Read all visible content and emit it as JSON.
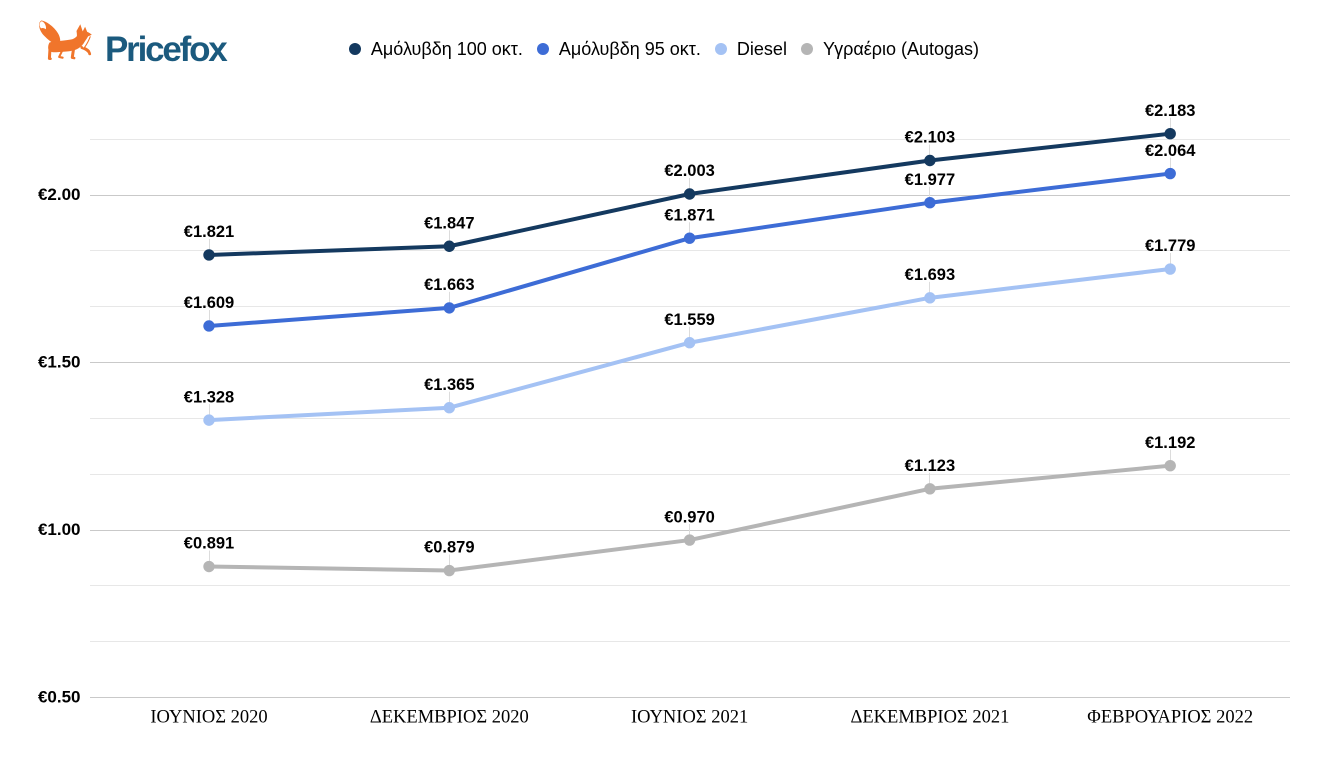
{
  "logo": {
    "text": "Pricefox",
    "wordmark_color": "#1b5a7e",
    "fox_color": "#f0752b"
  },
  "chart_data": {
    "type": "line",
    "categories": [
      "ΙΟΥΝΙΟΣ 2020",
      "ΔΕΚΕΜΒΡΙΟΣ 2020",
      "ΙΟΥΝΙΟΣ 2021",
      "ΔΕΚΕΜΒΡΙΟΣ 2021",
      "ΦΕΒΡΟΥΑΡΙΟΣ 2022"
    ],
    "series": [
      {
        "name": "Αμόλυβδη 100 οκτ.",
        "color": "#14395f",
        "values": [
          1.821,
          1.847,
          2.003,
          2.103,
          2.183
        ],
        "point_labels": [
          "€1.821",
          "€1.847",
          "€2.003",
          "€2.103",
          "€2.183"
        ]
      },
      {
        "name": "Αμόλυβδη 95 οκτ.",
        "color": "#3d6cd6",
        "values": [
          1.609,
          1.663,
          1.871,
          1.977,
          2.064
        ],
        "point_labels": [
          "€1.609",
          "€1.663",
          "€1.871",
          "€1.977",
          "€2.064"
        ]
      },
      {
        "name": "Diesel",
        "color": "#a4c2f4",
        "values": [
          1.328,
          1.365,
          1.559,
          1.693,
          1.779
        ],
        "point_labels": [
          "€1.328",
          "€1.365",
          "€1.559",
          "€1.693",
          "€1.779"
        ]
      },
      {
        "name": "Υγραέριο (Autogas)",
        "color": "#b5b5b5",
        "values": [
          0.891,
          0.879,
          0.97,
          1.123,
          1.192
        ],
        "point_labels": [
          "€0.891",
          "€0.879",
          "€0.970",
          "€1.123",
          "€1.192"
        ]
      }
    ],
    "yticks": [
      {
        "label": "€2.00",
        "value": 2.0
      },
      {
        "label": "€1.50",
        "value": 1.5
      },
      {
        "label": "€1.00",
        "value": 1.0
      },
      {
        "label": "€0.50",
        "value": 0.5
      }
    ],
    "ylim": [
      0.5,
      2.1667
    ],
    "minor_gridlines_per_major": 3,
    "grid": true,
    "legend_position": "top",
    "currency_prefix": "€"
  }
}
